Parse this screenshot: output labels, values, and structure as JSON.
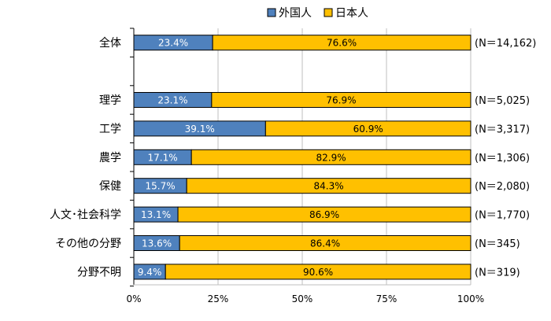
{
  "chart_data": {
    "type": "bar",
    "orientation": "horizontal",
    "stacked": "percent",
    "categories": [
      "全体",
      "",
      "理学",
      "工学",
      "農学",
      "保健",
      "人文･社会科学",
      "その他の分野",
      "分野不明"
    ],
    "n_labels": [
      "(N＝14,162)",
      "",
      "(N＝5,025)",
      "(N＝3,317)",
      "(N＝1,306)",
      "(N＝2,080)",
      "(N＝1,770)",
      "(N＝345)",
      "(N＝319)"
    ],
    "series": [
      {
        "name": "外国人",
        "color": "#4F81BD",
        "value_labels": [
          "23.4%",
          "",
          "23.1%",
          "39.1%",
          "17.1%",
          "15.7%",
          "13.1%",
          "13.6%",
          "9.4%"
        ],
        "values": [
          23.4,
          null,
          23.1,
          39.1,
          17.1,
          15.7,
          13.1,
          13.6,
          9.4
        ]
      },
      {
        "name": "日本人",
        "color": "#FFC000",
        "value_labels": [
          "76.6%",
          "",
          "76.9%",
          "60.9%",
          "82.9%",
          "84.3%",
          "86.9%",
          "86.4%",
          "90.6%"
        ],
        "values": [
          76.6,
          null,
          76.9,
          60.9,
          82.9,
          84.3,
          86.9,
          86.4,
          90.6
        ]
      }
    ],
    "xlim": [
      0,
      100
    ],
    "xticks": [
      "0%",
      "25%",
      "50%",
      "75%",
      "100%"
    ],
    "grid": true,
    "legend": "top-center"
  }
}
